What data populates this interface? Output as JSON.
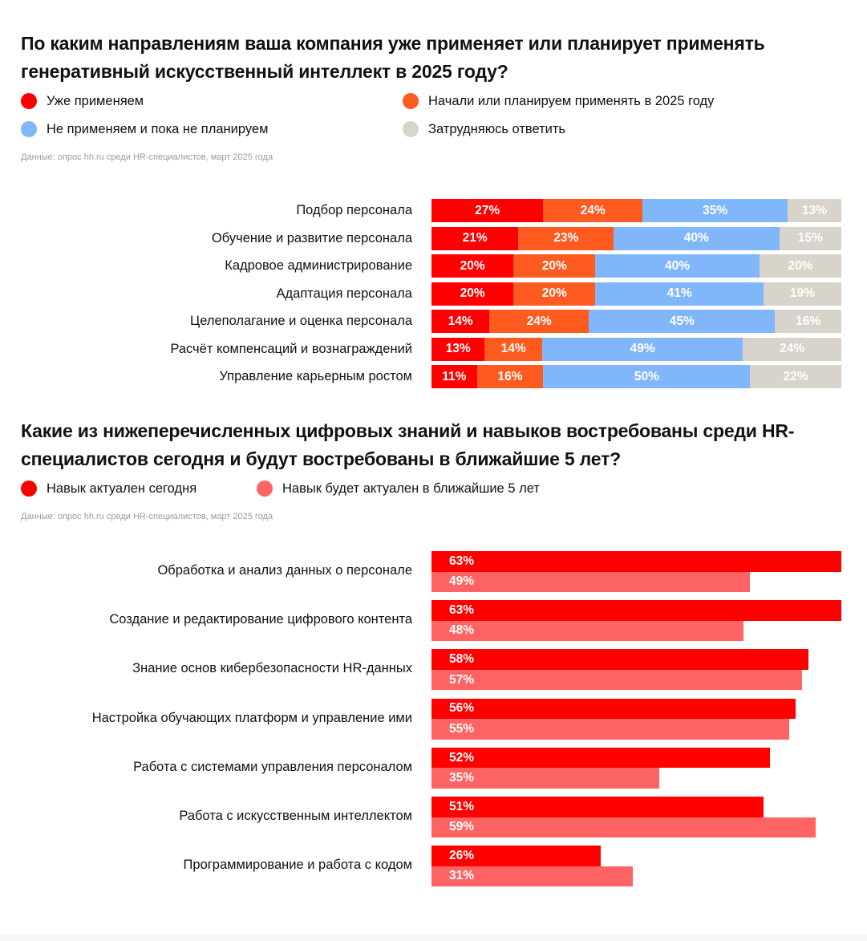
{
  "colors": {
    "red": "#ff0000",
    "orange": "#ff5a1f",
    "blue": "#80b7fb",
    "gray": "#d8d3cb",
    "pink": "#ff6464"
  },
  "chart_data": [
    {
      "type": "bar",
      "stacked": true,
      "orientation": "horizontal",
      "title": "По каким направлениям ваша компания уже применяет или планирует применять генеративный искусственный интеллект в 2025 году?",
      "source": "Данные: опрос hh.ru среди HR-специалистов, март 2025 года",
      "categories": [
        "Подбор персонала",
        "Обучение и развитие персонала",
        "Кадровое администрирование",
        "Адаптация персонала",
        "Целеполагание и оценка персонала",
        "Расчёт компенсаций и вознаграждений",
        "Управление карьерным ростом"
      ],
      "series": [
        {
          "name": "Уже применяем",
          "color": "#ff0000",
          "values": [
            27,
            21,
            20,
            20,
            14,
            13,
            11
          ]
        },
        {
          "name": "Начали или планируем применять в 2025 году",
          "color": "#ff5a1f",
          "values": [
            24,
            23,
            20,
            20,
            24,
            14,
            16
          ]
        },
        {
          "name": "Не применяем и пока не планируем",
          "color": "#80b7fb",
          "values": [
            35,
            40,
            40,
            41,
            45,
            49,
            50
          ]
        },
        {
          "name": "Затрудняюсь ответить",
          "color": "#d8d3cb",
          "values": [
            13,
            15,
            20,
            19,
            16,
            24,
            22
          ]
        }
      ]
    },
    {
      "type": "bar",
      "orientation": "horizontal",
      "title": "Какие из нижеперечисленных цифровых знаний и навыков востребованы среди HR-специалистов сегодня и будут востребованы в ближайшие 5 лет?",
      "source": "Данные: опрос hh.ru среди HR-специалистов, март 2025 года",
      "xlim": [
        0,
        63
      ],
      "categories": [
        "Обработка и анализ данных о персонале",
        "Создание и редактирование цифрового контента",
        "Знание основ кибербезопасности HR-данных",
        "Настройка обучающих платформ и управление ими",
        "Работа с системами управления персоналом",
        "Работа с искусственным интеллектом",
        "Программирование и работа с кодом"
      ],
      "series": [
        {
          "name": "Навык актуален сегодня",
          "color": "#ff0000",
          "values": [
            63,
            63,
            58,
            56,
            52,
            51,
            26
          ]
        },
        {
          "name": "Навык будет актуален в ближайшие 5 лет",
          "color": "#ff6464",
          "values": [
            49,
            48,
            57,
            55,
            35,
            59,
            31
          ]
        }
      ]
    }
  ]
}
